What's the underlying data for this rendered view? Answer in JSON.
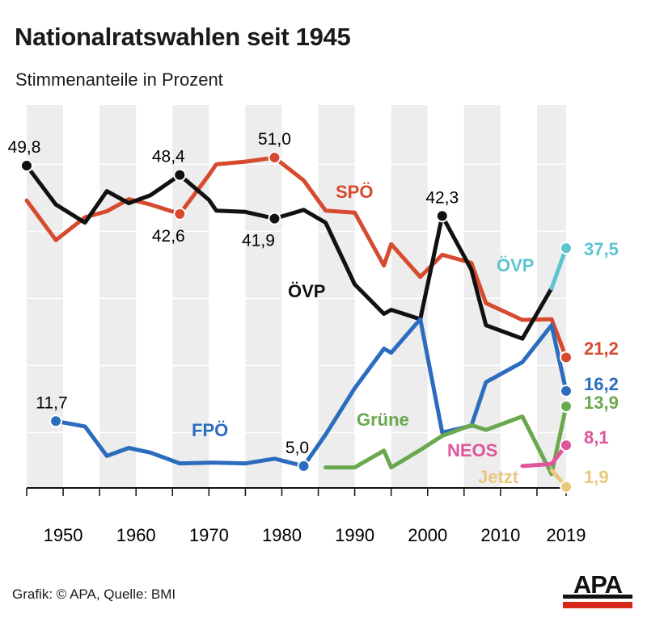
{
  "title": "Nationalratswahlen seit 1945",
  "subtitle": "Stimmenanteile in Prozent",
  "source": "Grafik: © APA, Quelle: BMI",
  "logo_text": "APA",
  "chart_data": {
    "type": "line",
    "xlim": [
      1945,
      2019
    ],
    "ylim": [
      0,
      55
    ],
    "x_ticks": [
      "1950",
      "1960",
      "1970",
      "1980",
      "1990",
      "2000",
      "2010",
      "2019"
    ],
    "grid": "vertical bands",
    "series": [
      {
        "name": "SPÖ",
        "color": "#d64a2f",
        "points": [
          [
            1945,
            44.6
          ],
          [
            1949,
            38.7
          ],
          [
            1953,
            42.1
          ],
          [
            1956,
            43.0
          ],
          [
            1959,
            44.8
          ],
          [
            1962,
            44.0
          ],
          [
            1966,
            42.6
          ],
          [
            1970,
            48.4
          ],
          [
            1971,
            50.0
          ],
          [
            1975,
            50.4
          ],
          [
            1979,
            51.0
          ],
          [
            1983,
            47.6
          ],
          [
            1986,
            43.1
          ],
          [
            1990,
            42.8
          ],
          [
            1994,
            34.9
          ],
          [
            1995,
            38.1
          ],
          [
            1999,
            33.2
          ],
          [
            2002,
            36.5
          ],
          [
            2006,
            35.3
          ],
          [
            2008,
            29.3
          ],
          [
            2013,
            26.8
          ],
          [
            2017,
            26.9
          ],
          [
            2019,
            21.2
          ]
        ]
      },
      {
        "name": "ÖVP",
        "color": "#111111",
        "points": [
          [
            1945,
            49.8
          ],
          [
            1949,
            44.0
          ],
          [
            1953,
            41.3
          ],
          [
            1956,
            46.0
          ],
          [
            1959,
            44.2
          ],
          [
            1962,
            45.4
          ],
          [
            1966,
            48.4
          ],
          [
            1970,
            44.7
          ],
          [
            1971,
            43.1
          ],
          [
            1975,
            42.9
          ],
          [
            1979,
            41.9
          ],
          [
            1983,
            43.2
          ],
          [
            1986,
            41.3
          ],
          [
            1990,
            32.1
          ],
          [
            1994,
            27.7
          ],
          [
            1995,
            28.3
          ],
          [
            1999,
            26.9
          ],
          [
            2002,
            42.3
          ],
          [
            2006,
            34.3
          ],
          [
            2008,
            26.0
          ],
          [
            2013,
            24.0
          ],
          [
            2017,
            31.5
          ]
        ]
      },
      {
        "name": "ÖVP",
        "color": "#5ec4d0",
        "points": [
          [
            2017,
            31.5
          ],
          [
            2019,
            37.5
          ]
        ]
      },
      {
        "name": "FPÖ",
        "color": "#2b6cbf",
        "points": [
          [
            1949,
            11.7
          ],
          [
            1953,
            10.9
          ],
          [
            1956,
            6.5
          ],
          [
            1959,
            7.7
          ],
          [
            1962,
            7.0
          ],
          [
            1966,
            5.4
          ],
          [
            1970,
            5.5
          ],
          [
            1971,
            5.5
          ],
          [
            1975,
            5.4
          ],
          [
            1979,
            6.1
          ],
          [
            1983,
            5.0
          ],
          [
            1986,
            9.7
          ],
          [
            1990,
            16.6
          ],
          [
            1994,
            22.5
          ],
          [
            1995,
            21.9
          ],
          [
            1999,
            26.9
          ],
          [
            2002,
            10.0
          ],
          [
            2006,
            11.0
          ],
          [
            2008,
            17.5
          ],
          [
            2013,
            20.5
          ],
          [
            2017,
            26.0
          ],
          [
            2019,
            16.2
          ]
        ]
      },
      {
        "name": "Grüne",
        "color": "#6aa84f",
        "points": [
          [
            1986,
            4.8
          ],
          [
            1990,
            4.8
          ],
          [
            1994,
            7.3
          ],
          [
            1995,
            4.8
          ],
          [
            1999,
            7.4
          ],
          [
            2002,
            9.5
          ],
          [
            2006,
            11.1
          ],
          [
            2008,
            10.4
          ],
          [
            2013,
            12.4
          ],
          [
            2017,
            3.8
          ],
          [
            2019,
            13.9
          ]
        ]
      },
      {
        "name": "NEOS",
        "color": "#e0559a",
        "points": [
          [
            2013,
            5.0
          ],
          [
            2017,
            5.3
          ],
          [
            2019,
            8.1
          ]
        ]
      },
      {
        "name": "Jetzt",
        "color": "#e8c87c",
        "points": [
          [
            2017,
            4.4
          ],
          [
            2019,
            1.9
          ]
        ]
      }
    ],
    "annotations": [
      {
        "text": "49,8",
        "x": 1945,
        "y": 49.8
      },
      {
        "text": "48,4",
        "x": 1966,
        "y": 48.4
      },
      {
        "text": "42,6",
        "x": 1966,
        "y": 42.6
      },
      {
        "text": "51,0",
        "x": 1979,
        "y": 51.0
      },
      {
        "text": "41,9",
        "x": 1979,
        "y": 41.9
      },
      {
        "text": "42,3",
        "x": 2002,
        "y": 42.3
      },
      {
        "text": "11,7",
        "x": 1949,
        "y": 11.7
      },
      {
        "text": "5,0",
        "x": 1983,
        "y": 5.0
      }
    ],
    "series_labels": [
      "SPÖ",
      "ÖVP",
      "FPÖ",
      "Grüne",
      "NEOS",
      "Jetzt",
      "ÖVP"
    ],
    "end_labels": [
      {
        "text": "37,5",
        "color": "#5ec4d0"
      },
      {
        "text": "21,2",
        "color": "#d64a2f"
      },
      {
        "text": "16,2",
        "color": "#2b6cbf"
      },
      {
        "text": "13,9",
        "color": "#6aa84f"
      },
      {
        "text": "8,1",
        "color": "#e0559a"
      },
      {
        "text": "1,9",
        "color": "#e8c87c"
      }
    ]
  }
}
